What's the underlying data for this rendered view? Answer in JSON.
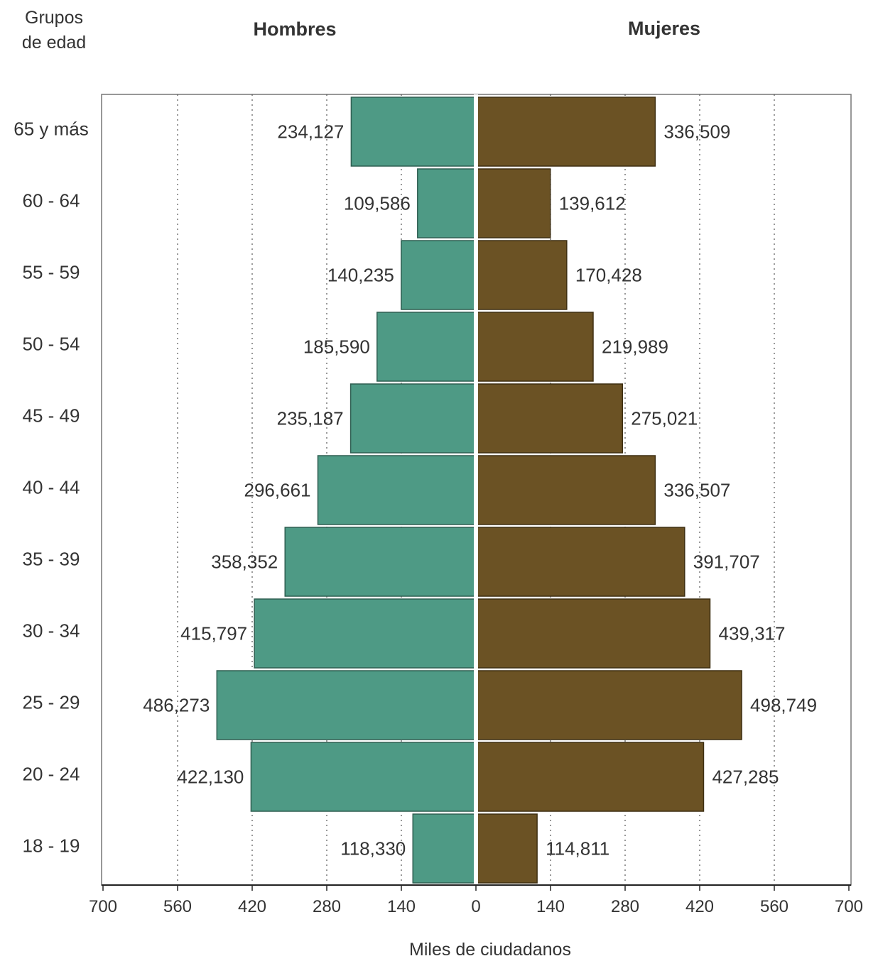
{
  "chart_data": {
    "type": "bar",
    "orientation": "horizontal",
    "title": "",
    "axis_title_categories": "Grupos de edad",
    "xlabel": "Miles de ciudadanos",
    "xlim": [
      -700,
      700
    ],
    "x_ticks": [
      700,
      560,
      420,
      280,
      140,
      0,
      140,
      280,
      420,
      560,
      700
    ],
    "grid": "vertical-dotted",
    "categories": [
      "65 y más",
      "60 - 64",
      "55 - 59",
      "50 - 54",
      "45 - 49",
      "40 - 44",
      "35 - 39",
      "30 - 34",
      "25 - 29",
      "20 - 24",
      "18 - 19"
    ],
    "series": [
      {
        "name": "Hombres",
        "side": "left",
        "color": "#4e9a85",
        "values": [
          234.127,
          109.586,
          140.235,
          185.59,
          235.187,
          296.661,
          358.352,
          415.797,
          486.273,
          422.13,
          118.33
        ],
        "labels": [
          "234,127",
          "109,586",
          "140,235",
          "185,590",
          "235,187",
          "296,661",
          "358,352",
          "415,797",
          "486,273",
          "422,130",
          "118,330"
        ]
      },
      {
        "name": "Mujeres",
        "side": "right",
        "color": "#6b5224",
        "values": [
          336.509,
          139.612,
          170.428,
          219.989,
          275.021,
          336.507,
          391.707,
          439.317,
          498.749,
          427.285,
          114.811
        ],
        "labels": [
          "336,509",
          "139,612",
          "170,428",
          "219,989",
          "275,021",
          "336,507",
          "391,707",
          "439,317",
          "498,749",
          "427,285",
          "114,811"
        ]
      }
    ]
  }
}
